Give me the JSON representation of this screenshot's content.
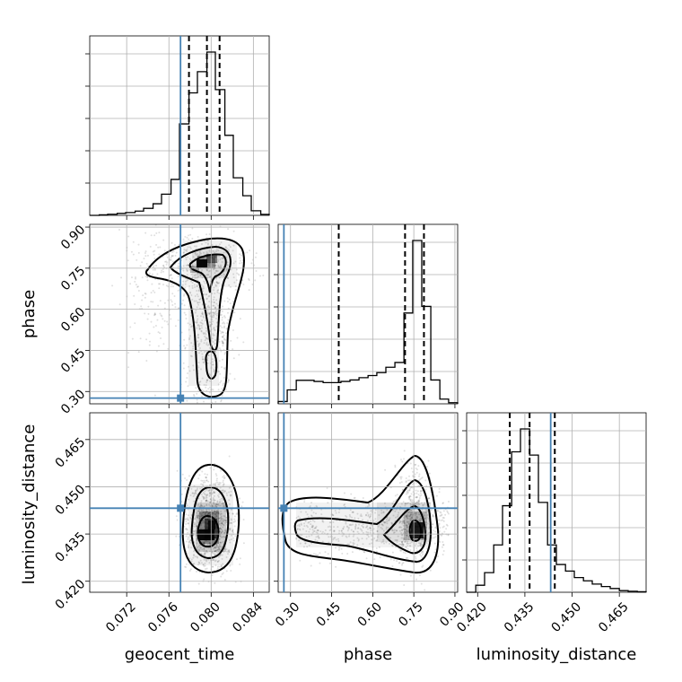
{
  "chart_data": {
    "type": "corner",
    "parameters": [
      "geocent_time",
      "phase",
      "luminosity_distance"
    ],
    "axis_labels": {
      "geocent_time": "geocent_time",
      "phase": "phase",
      "luminosity_distance": "luminosity_distance"
    },
    "ranges": {
      "geocent_time": [
        0.0685,
        0.0855
      ],
      "phase": [
        0.255,
        0.91
      ],
      "luminosity_distance": [
        0.4165,
        0.4735
      ]
    },
    "ticks": {
      "geocent_time": [
        "0.072",
        "0.076",
        "0.080",
        "0.084"
      ],
      "phase": [
        "0.30",
        "0.45",
        "0.60",
        "0.75",
        "0.90"
      ],
      "luminosity_distance": [
        "0.420",
        "0.435",
        "0.450",
        "0.465"
      ]
    },
    "truths": {
      "geocent_time": 0.0771,
      "phase": 0.2758,
      "luminosity_distance": 0.4432
    },
    "truth_color": "#4682b4",
    "quantiles": {
      "geocent_time": [
        0.0779,
        0.0796,
        0.0808
      ],
      "phase": [
        0.476,
        0.718,
        0.787
      ],
      "luminosity_distance": [
        0.4302,
        0.4365,
        0.4445
      ]
    },
    "grid": true,
    "histograms": {
      "geocent_time": {
        "bin_edges": [
          0.0685,
          0.0694,
          0.0702,
          0.0711,
          0.0719,
          0.0728,
          0.0736,
          0.0745,
          0.0753,
          0.0762,
          0.077,
          0.0779,
          0.0787,
          0.0796,
          0.0804,
          0.0813,
          0.0821,
          0.083,
          0.0838,
          0.0847,
          0.0855
        ],
        "counts": [
          0,
          0.3,
          0.7,
          1.2,
          1.7,
          2.6,
          4.3,
          7.1,
          13,
          22,
          56,
          75,
          88,
          100,
          77,
          49,
          23,
          12,
          2.8,
          0.6
        ]
      },
      "phase": {
        "bin_edges": [
          0.255,
          0.288,
          0.321,
          0.353,
          0.386,
          0.419,
          0.452,
          0.484,
          0.517,
          0.55,
          0.583,
          0.615,
          0.648,
          0.681,
          0.714,
          0.746,
          0.779,
          0.812,
          0.845,
          0.877,
          0.91
        ],
        "counts": [
          1.4,
          8.5,
          14.4,
          14.4,
          13.7,
          13.0,
          13.0,
          13.7,
          14.6,
          16.0,
          17.3,
          19.1,
          22.4,
          25.3,
          55.6,
          100,
          59.7,
          14.6,
          2.9,
          0.7
        ]
      },
      "luminosity_distance": {
        "bin_edges": [
          0.4165,
          0.4194,
          0.4222,
          0.4251,
          0.4279,
          0.4308,
          0.4336,
          0.4365,
          0.4393,
          0.4422,
          0.445,
          0.4479,
          0.4507,
          0.4536,
          0.4564,
          0.4593,
          0.4621,
          0.465,
          0.4678,
          0.4707,
          0.4735
        ],
        "counts": [
          0,
          4.3,
          12,
          29,
          53,
          86,
          100,
          84,
          55,
          29,
          17,
          13,
          9,
          7,
          5,
          3.5,
          2.3,
          1,
          0.6,
          0.3
        ]
      }
    },
    "density_2d": {
      "phase_vs_geocent_time": {
        "peak": [
          0.0793,
          0.767
        ],
        "ridge": [
          [
            0.0755,
            0.735
          ],
          [
            0.079,
            0.77
          ],
          [
            0.0805,
            0.76
          ],
          [
            0.08,
            0.6
          ],
          [
            0.08,
            0.38
          ]
        ]
      },
      "luminosity_distance_vs_geocent_time": {
        "peak": [
          0.0797,
          0.4362
        ]
      },
      "luminosity_distance_vs_phase": {
        "peak": [
          0.765,
          0.4362
        ],
        "ridge": [
          [
            0.35,
            0.438
          ],
          [
            0.55,
            0.437
          ],
          [
            0.7,
            0.437
          ],
          [
            0.765,
            0.4362
          ]
        ]
      }
    }
  }
}
